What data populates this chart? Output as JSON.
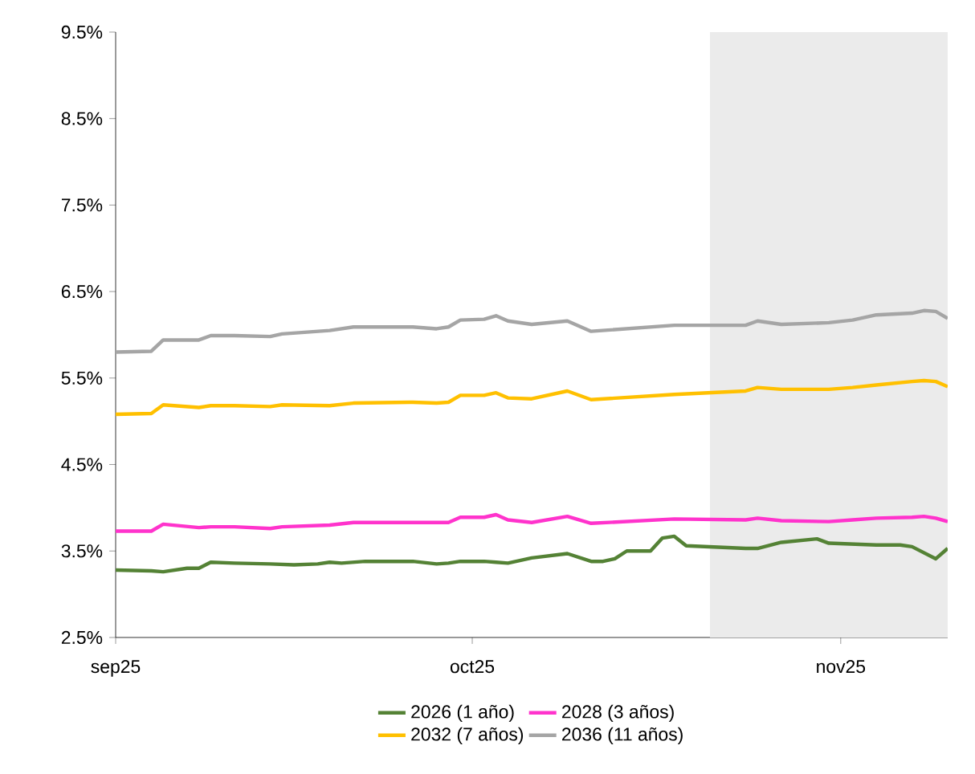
{
  "chart_data": {
    "type": "line",
    "x": [
      "2025-09-01",
      "2025-09-04",
      "2025-09-05",
      "2025-09-08",
      "2025-09-09",
      "2025-09-11",
      "2025-09-14",
      "2025-09-15",
      "2025-09-19",
      "2025-09-21",
      "2025-09-26",
      "2025-09-28",
      "2025-09-29",
      "2025-09-30",
      "2025-10-02",
      "2025-10-03",
      "2025-10-04",
      "2025-10-06",
      "2025-10-09",
      "2025-10-11",
      "2025-10-18",
      "2025-10-24",
      "2025-10-25",
      "2025-10-27",
      "2025-10-31",
      "2025-11-02",
      "2025-11-04",
      "2025-11-07",
      "2025-11-08",
      "2025-11-09",
      "2025-11-10"
    ],
    "series": [
      {
        "name": "2026 (1 año)",
        "color": "#548235",
        "x": [
          "2025-09-01",
          "2025-09-04",
          "2025-09-05",
          "2025-09-07",
          "2025-09-08",
          "2025-09-09",
          "2025-09-11",
          "2025-09-14",
          "2025-09-16",
          "2025-09-18",
          "2025-09-19",
          "2025-09-20",
          "2025-09-22",
          "2025-09-26",
          "2025-09-28",
          "2025-09-29",
          "2025-09-30",
          "2025-10-02",
          "2025-10-03",
          "2025-10-04",
          "2025-10-06",
          "2025-10-09",
          "2025-10-11",
          "2025-10-12",
          "2025-10-13",
          "2025-10-14",
          "2025-10-16",
          "2025-10-17",
          "2025-10-18",
          "2025-10-19",
          "2025-10-24",
          "2025-10-25",
          "2025-10-27",
          "2025-10-30",
          "2025-10-31",
          "2025-11-04",
          "2025-11-06",
          "2025-11-07",
          "2025-11-09",
          "2025-11-10"
        ],
        "values": [
          3.28,
          3.27,
          3.26,
          3.3,
          3.3,
          3.37,
          3.36,
          3.35,
          3.34,
          3.35,
          3.37,
          3.36,
          3.38,
          3.38,
          3.35,
          3.36,
          3.38,
          3.38,
          3.37,
          3.36,
          3.42,
          3.47,
          3.38,
          3.38,
          3.41,
          3.5,
          3.5,
          3.65,
          3.67,
          3.56,
          3.53,
          3.53,
          3.6,
          3.64,
          3.59,
          3.57,
          3.57,
          3.55,
          3.41,
          3.53
        ]
      },
      {
        "name": "2028 (3 años)",
        "color": "#ff33cc",
        "values": [
          3.73,
          3.73,
          3.81,
          3.77,
          3.78,
          3.78,
          3.76,
          3.78,
          3.8,
          3.83,
          3.83,
          3.83,
          3.83,
          3.89,
          3.89,
          3.92,
          3.86,
          3.83,
          3.9,
          3.82,
          3.87,
          3.86,
          3.88,
          3.85,
          3.84,
          3.86,
          3.88,
          3.89,
          3.9,
          3.88,
          3.84
        ]
      },
      {
        "name": "2032 (7 años)",
        "color": "#ffc000",
        "values": [
          5.08,
          5.09,
          5.19,
          5.16,
          5.18,
          5.18,
          5.17,
          5.19,
          5.18,
          5.21,
          5.22,
          5.21,
          5.22,
          5.3,
          5.3,
          5.33,
          5.27,
          5.26,
          5.35,
          5.25,
          5.31,
          5.35,
          5.39,
          5.37,
          5.37,
          5.39,
          5.42,
          5.46,
          5.47,
          5.46,
          5.4
        ]
      },
      {
        "name": "2036 (11 años)",
        "color": "#a5a5a5",
        "values": [
          5.8,
          5.81,
          5.94,
          5.94,
          5.99,
          5.99,
          5.98,
          6.01,
          6.05,
          6.09,
          6.09,
          6.07,
          6.09,
          6.17,
          6.18,
          6.22,
          6.16,
          6.12,
          6.16,
          6.04,
          6.11,
          6.11,
          6.16,
          6.12,
          6.14,
          6.17,
          6.23,
          6.25,
          6.28,
          6.27,
          6.19
        ]
      }
    ],
    "xlim": [
      "2025-09-01",
      "2025-11-10"
    ],
    "xticks": [
      {
        "value": "2025-09-01",
        "label": "sep25"
      },
      {
        "value": "2025-10-01",
        "label": "oct25"
      },
      {
        "value": "2025-11-01",
        "label": "nov25"
      }
    ],
    "ylim": [
      2.5,
      9.5
    ],
    "yticks": [
      {
        "value": 2.5,
        "label": "2.5%"
      },
      {
        "value": 3.5,
        "label": "3.5%"
      },
      {
        "value": 4.5,
        "label": "4.5%"
      },
      {
        "value": 5.5,
        "label": "5.5%"
      },
      {
        "value": 6.5,
        "label": "6.5%"
      },
      {
        "value": 7.5,
        "label": "7.5%"
      },
      {
        "value": 8.5,
        "label": "8.5%"
      },
      {
        "value": 9.5,
        "label": "9.5%"
      }
    ],
    "bands": [
      {
        "axis": "x",
        "from": "2025-10-21",
        "to": "2025-11-10",
        "color": "#ebebeb"
      }
    ],
    "legend": "bottom"
  }
}
